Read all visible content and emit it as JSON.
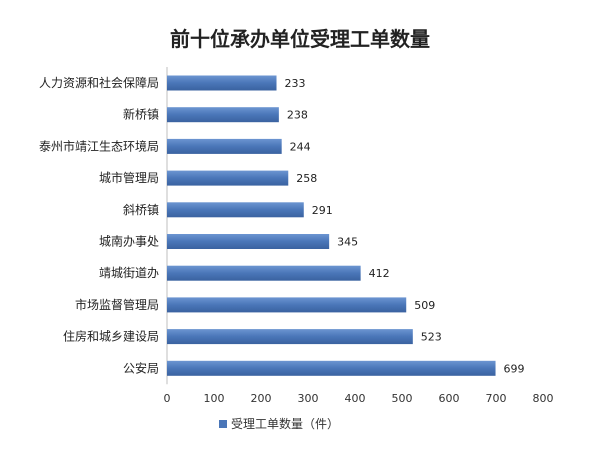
{
  "chart_data": {
    "type": "bar",
    "orientation": "horizontal",
    "title": "前十位承办单位受理工单数量",
    "categories": [
      "人力资源和社会保障局",
      "新桥镇",
      "泰州市靖江生态环境局",
      "城市管理局",
      "斜桥镇",
      "城南办事处",
      "靖城街道办",
      "市场监督管理局",
      "住房和城乡建设局",
      "公安局"
    ],
    "series": [
      {
        "name": "受理工单数量（件）",
        "values": [
          233,
          238,
          244,
          258,
          291,
          345,
          412,
          509,
          523,
          699
        ]
      }
    ],
    "xlim": [
      0,
      800
    ],
    "ticks": [
      0,
      100,
      200,
      300,
      400,
      500,
      600,
      700,
      800
    ],
    "xlabel": "",
    "ylabel": "",
    "grid": false,
    "data_labels": true,
    "legend": "bottom",
    "colors": {
      "bar": "#4a76b8",
      "bar_light": "#6c95d1",
      "bar_dark": "#3a62a0"
    }
  }
}
